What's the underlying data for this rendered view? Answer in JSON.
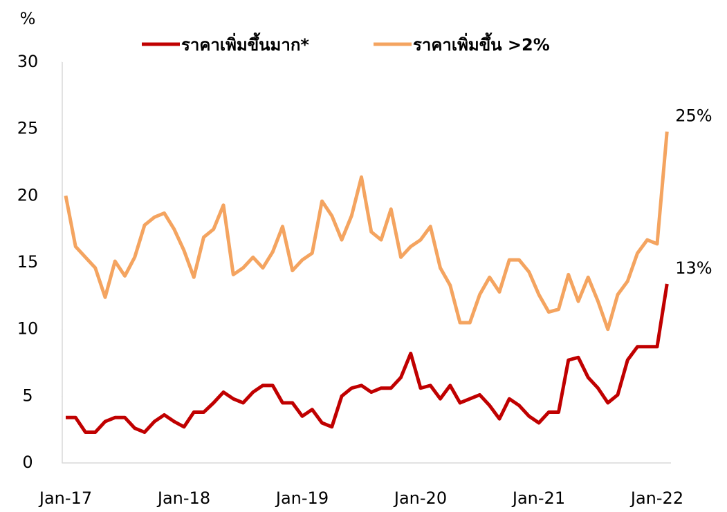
{
  "chart_data": {
    "type": "line",
    "y_unit_label": "%",
    "categories": [
      "Jan-17",
      null,
      null,
      null,
      null,
      null,
      null,
      null,
      null,
      null,
      null,
      null,
      "Jan-18",
      null,
      null,
      null,
      null,
      null,
      null,
      null,
      null,
      null,
      null,
      null,
      "Jan-19",
      null,
      null,
      null,
      null,
      null,
      null,
      null,
      null,
      null,
      null,
      null,
      "Jan-20",
      null,
      null,
      null,
      null,
      null,
      null,
      null,
      null,
      null,
      null,
      null,
      "Jan-21",
      null,
      null,
      null,
      null,
      null,
      null,
      null,
      null,
      null,
      null,
      null,
      "Jan-22",
      null
    ],
    "series": [
      {
        "name": "ราคาเพิ่มขึ้นมาก*",
        "color": "#c00000",
        "end_label": "13%",
        "values": [
          3.4,
          3.4,
          2.3,
          2.3,
          3.1,
          3.4,
          3.4,
          2.6,
          2.3,
          3.1,
          3.6,
          3.1,
          2.7,
          3.8,
          3.8,
          4.5,
          5.3,
          4.8,
          4.5,
          5.3,
          5.8,
          5.8,
          4.5,
          4.5,
          3.5,
          4.0,
          3.0,
          2.7,
          5.0,
          5.6,
          5.8,
          5.3,
          5.6,
          5.6,
          6.4,
          8.2,
          5.6,
          5.8,
          4.8,
          5.8,
          4.5,
          4.8,
          5.1,
          4.3,
          3.3,
          4.8,
          4.3,
          3.5,
          3.0,
          3.8,
          3.8,
          7.7,
          7.9,
          6.4,
          5.6,
          4.5,
          5.1,
          7.7,
          8.7,
          8.7,
          8.7,
          13.4
        ]
      },
      {
        "name": "ราคาเพิ่มขึ้น >2%",
        "color": "#f4a460",
        "end_label": "25%",
        "label_color": "#e07b20",
        "values": [
          20.0,
          16.2,
          15.4,
          14.6,
          12.4,
          15.1,
          14.0,
          15.4,
          17.8,
          18.4,
          18.7,
          17.5,
          15.9,
          13.9,
          16.9,
          17.5,
          19.3,
          14.1,
          14.6,
          15.4,
          14.6,
          15.8,
          17.7,
          14.4,
          15.2,
          15.7,
          19.6,
          18.5,
          16.7,
          18.5,
          21.4,
          17.3,
          16.7,
          19.0,
          15.4,
          16.2,
          16.7,
          17.7,
          14.6,
          13.3,
          10.5,
          10.5,
          12.6,
          13.9,
          12.8,
          15.2,
          15.2,
          14.3,
          12.6,
          11.3,
          11.5,
          14.1,
          12.1,
          13.9,
          12.1,
          10.0,
          12.6,
          13.6,
          15.7,
          16.7,
          16.4,
          24.8
        ]
      }
    ],
    "ylim": [
      0,
      30
    ],
    "yticks": [
      0,
      5,
      10,
      15,
      20,
      25,
      30
    ],
    "grid": false,
    "legend": "top"
  }
}
